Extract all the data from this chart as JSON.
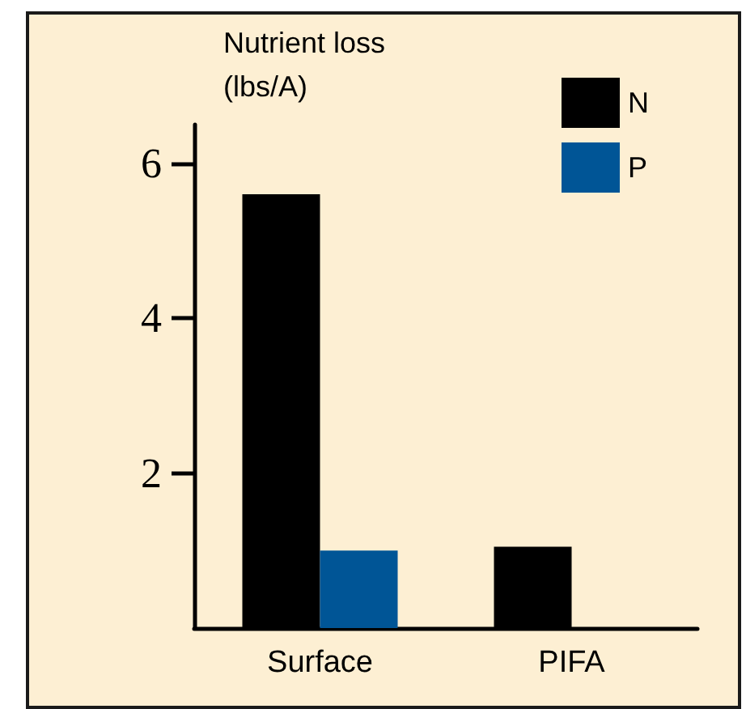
{
  "chart_data": {
    "type": "bar",
    "ylabel": "Nutrient loss\n(lbs/A)",
    "categories": [
      "Surface",
      "PIFA"
    ],
    "series": [
      {
        "name": "N",
        "color": "#000000",
        "values": [
          5.6,
          1.05
        ]
      },
      {
        "name": "P",
        "color": "#005596",
        "values": [
          1.0,
          null
        ]
      }
    ],
    "ylim": [
      0,
      6.5
    ],
    "yticks": [
      2,
      4,
      6
    ],
    "grid": false,
    "legend": "top right"
  }
}
